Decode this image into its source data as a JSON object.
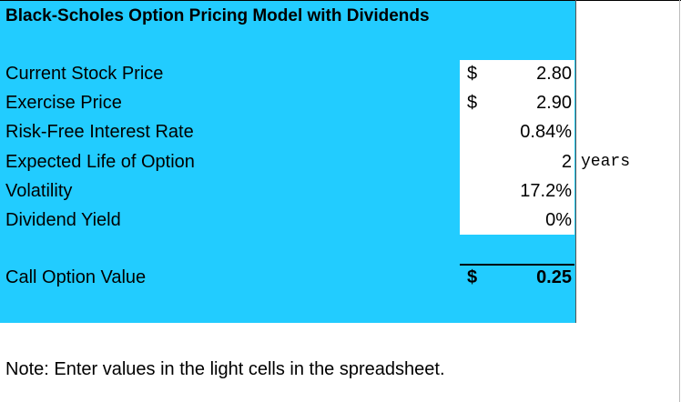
{
  "title": "Black-Scholes Option Pricing Model with Dividends",
  "rows": [
    {
      "label": "Current Stock Price",
      "currency": "$",
      "value": "2.80"
    },
    {
      "label": "Exercise Price",
      "currency": "$",
      "value": "2.90"
    },
    {
      "label": "Risk-Free Interest Rate",
      "value": "0.84%"
    },
    {
      "label": "Expected Life of Option",
      "value": "2",
      "unit": "years"
    },
    {
      "label": "Volatility",
      "value": "17.2%"
    },
    {
      "label": "Dividend Yield",
      "value": "0%"
    }
  ],
  "result": {
    "label": "Call Option Value",
    "currency": "$",
    "value": "0.25"
  },
  "note": "Note:  Enter values in the light cells in the spreadsheet."
}
